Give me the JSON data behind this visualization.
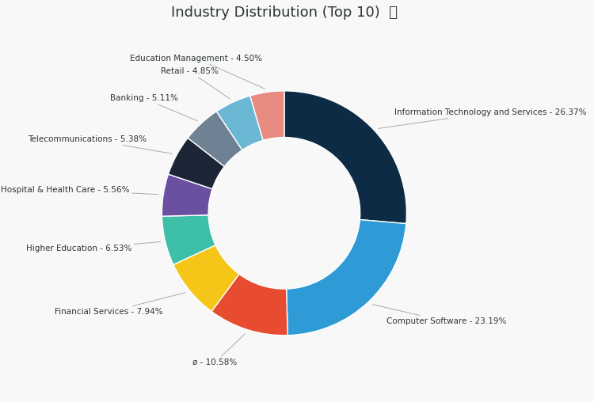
{
  "title": "Industry Distribution (Top 10)  ⓘ",
  "slices": [
    {
      "label": "Information Technology and Services",
      "value": 26.37,
      "color": "#0d2b45"
    },
    {
      "label": "Computer Software",
      "value": 23.19,
      "color": "#2e9bd6"
    },
    {
      "label": "ø",
      "value": 10.58,
      "color": "#e84c30"
    },
    {
      "label": "Financial Services",
      "value": 7.94,
      "color": "#f5c518"
    },
    {
      "label": "Higher Education",
      "value": 6.53,
      "color": "#3dbfa8"
    },
    {
      "label": "Hospital & Health Care",
      "value": 5.56,
      "color": "#6b4fa0"
    },
    {
      "label": "Telecommunications",
      "value": 5.38,
      "color": "#1c2535"
    },
    {
      "label": "Banking",
      "value": 5.11,
      "color": "#6e8294"
    },
    {
      "label": "Retail",
      "value": 4.85,
      "color": "#6ab8d4"
    },
    {
      "label": "Education Management",
      "value": 4.5,
      "color": "#e88b80"
    }
  ],
  "background_color": "#f8f8f8",
  "title_fontsize": 13,
  "label_fontsize": 7.5,
  "donut_width": 0.38
}
